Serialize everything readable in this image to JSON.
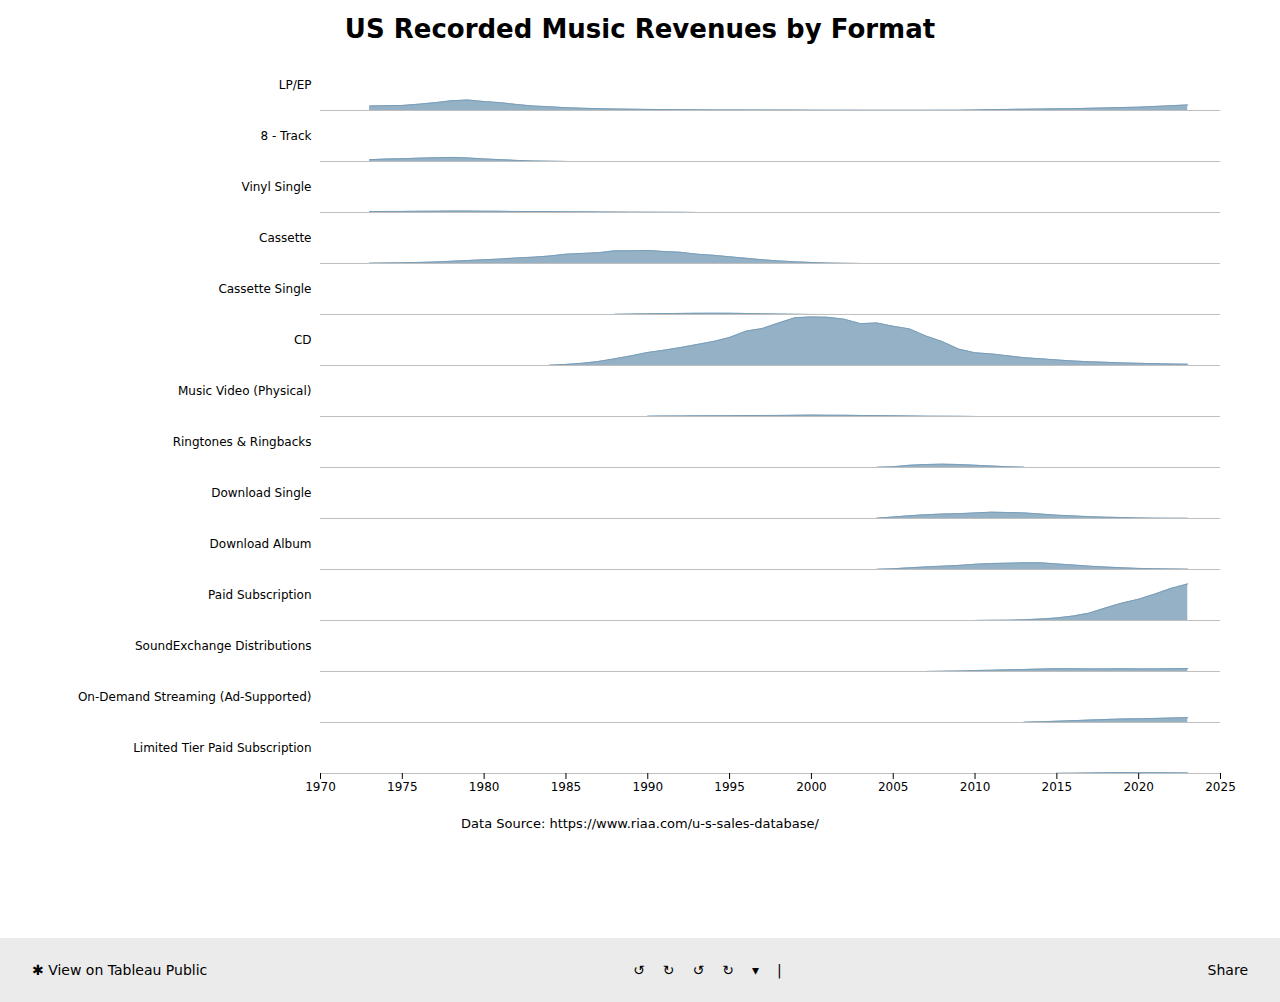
{
  "chart_data": {
    "type": "area",
    "title": "US Recorded Music Revenues by Format",
    "color": "#7a9eb8",
    "xlim": [
      1970,
      2025
    ],
    "xticks": [
      1970,
      1975,
      1980,
      1985,
      1990,
      1995,
      2000,
      2005,
      2010,
      2015,
      2020,
      2025
    ],
    "ylim": [
      0,
      13650
    ],
    "tick_labels": "x",
    "grid": false,
    "annotations": [
      "Data Source: https://www.riaa.com/u-s-sales-database/",
      "✱  View on Tableau Public",
      "↺",
      "↻",
      "↺",
      "↻",
      "▾",
      "|",
      "Share"
    ],
    "series": [
      {
        "name": "LP/EP",
        "x": [
          1973,
          1974,
          1975,
          1976,
          1977,
          1978,
          1979,
          1980,
          1981,
          1982,
          1983,
          1984,
          1985,
          1986,
          1987,
          1988,
          1989,
          1990,
          1991,
          1992,
          1993,
          1994,
          1995,
          1996,
          1997,
          1998,
          1999,
          2000,
          2001,
          2002,
          2003,
          2004,
          2005,
          2006,
          2007,
          2008,
          2009,
          2010,
          2011,
          2012,
          2013,
          2014,
          2015,
          2016,
          2017,
          2018,
          2019,
          2020,
          2021,
          2022,
          2023
        ],
        "values": [
          1200,
          1300,
          1350,
          1700,
          2100,
          2600,
          2800,
          2400,
          2100,
          1600,
          1200,
          1000,
          750,
          600,
          500,
          400,
          350,
          300,
          250,
          200,
          180,
          160,
          150,
          140,
          130,
          120,
          110,
          100,
          90,
          80,
          70,
          70,
          60,
          60,
          70,
          80,
          90,
          150,
          250,
          300,
          350,
          400,
          450,
          500,
          600,
          700,
          800,
          900,
          1100,
          1300,
          1500
        ]
      },
      {
        "name": "8 - Track",
        "x": [
          1973,
          1974,
          1975,
          1976,
          1977,
          1978,
          1979,
          1980,
          1981,
          1982,
          1983,
          1984,
          1985
        ],
        "values": [
          500,
          650,
          750,
          900,
          1000,
          1100,
          950,
          700,
          500,
          300,
          150,
          80,
          30
        ]
      },
      {
        "name": "Vinyl Single",
        "x": [
          1973,
          1974,
          1975,
          1976,
          1977,
          1978,
          1979,
          1980,
          1981,
          1982,
          1983,
          1984,
          1985,
          1986,
          1987,
          1988,
          1989,
          1990,
          1991,
          1992,
          1993
        ],
        "values": [
          250,
          280,
          300,
          320,
          350,
          380,
          370,
          350,
          320,
          280,
          260,
          240,
          200,
          180,
          150,
          120,
          100,
          80,
          60,
          40,
          20
        ]
      },
      {
        "name": "Cassette",
        "x": [
          1973,
          1974,
          1975,
          1976,
          1977,
          1978,
          1979,
          1980,
          1981,
          1982,
          1983,
          1984,
          1985,
          1986,
          1987,
          1988,
          1989,
          1990,
          1991,
          1992,
          1993,
          1994,
          1995,
          1996,
          1997,
          1998,
          1999,
          2000,
          2001,
          2002,
          2003
        ],
        "values": [
          100,
          150,
          200,
          300,
          400,
          600,
          800,
          1000,
          1200,
          1500,
          1700,
          2000,
          2500,
          2700,
          2900,
          3400,
          3400,
          3500,
          3200,
          3000,
          2500,
          2200,
          1800,
          1400,
          1000,
          700,
          450,
          280,
          120,
          50,
          20
        ]
      },
      {
        "name": "Cassette Single",
        "x": [
          1988,
          1989,
          1990,
          1991,
          1992,
          1993,
          1994,
          1995,
          1996,
          1997,
          1998,
          1999,
          2000,
          2001
        ],
        "values": [
          50,
          120,
          200,
          250,
          300,
          320,
          340,
          330,
          280,
          200,
          120,
          60,
          20,
          5
        ]
      },
      {
        "name": "CD",
        "x": [
          1984,
          1985,
          1986,
          1987,
          1988,
          1989,
          1990,
          1991,
          1992,
          1993,
          1994,
          1995,
          1996,
          1997,
          1998,
          1999,
          2000,
          2001,
          2002,
          2003,
          2004,
          2005,
          2006,
          2007,
          2008,
          2009,
          2010,
          2011,
          2012,
          2013,
          2014,
          2015,
          2016,
          2017,
          2018,
          2019,
          2020,
          2021,
          2022,
          2023
        ],
        "values": [
          100,
          300,
          600,
          1100,
          1800,
          2600,
          3500,
          4100,
          4800,
          5600,
          6400,
          7500,
          9200,
          9900,
          11400,
          12800,
          13000,
          12900,
          12400,
          11200,
          11400,
          10500,
          9800,
          7900,
          6400,
          4400,
          3400,
          3100,
          2600,
          2100,
          1800,
          1500,
          1200,
          1000,
          850,
          700,
          580,
          500,
          400,
          350
        ]
      },
      {
        "name": "Music Video (Physical)",
        "x": [
          1990,
          1991,
          1992,
          1993,
          1994,
          1995,
          1996,
          1997,
          1998,
          1999,
          2000,
          2001,
          2002,
          2003,
          2004,
          2005,
          2006,
          2007,
          2008,
          2009,
          2010
        ],
        "values": [
          100,
          130,
          150,
          180,
          200,
          230,
          260,
          280,
          300,
          330,
          370,
          350,
          320,
          280,
          250,
          200,
          150,
          100,
          70,
          40,
          20
        ]
      },
      {
        "name": "Ringtones & Ringbacks",
        "x": [
          2004,
          2005,
          2006,
          2007,
          2008,
          2009,
          2010,
          2011,
          2012,
          2013
        ],
        "values": [
          50,
          200,
          600,
          800,
          900,
          800,
          600,
          400,
          200,
          80
        ]
      },
      {
        "name": "Download Single",
        "x": [
          2004,
          2005,
          2006,
          2007,
          2008,
          2009,
          2010,
          2011,
          2012,
          2013,
          2014,
          2015,
          2016,
          2017,
          2018,
          2019,
          2020,
          2021,
          2022,
          2023
        ],
        "values": [
          100,
          400,
          750,
          1000,
          1200,
          1300,
          1500,
          1700,
          1600,
          1500,
          1200,
          900,
          700,
          500,
          350,
          250,
          150,
          100,
          70,
          50
        ]
      },
      {
        "name": "Download Album",
        "x": [
          2004,
          2005,
          2006,
          2007,
          2008,
          2009,
          2010,
          2011,
          2012,
          2013,
          2014,
          2015,
          2016,
          2017,
          2018,
          2019,
          2020,
          2021,
          2022,
          2023
        ],
        "values": [
          50,
          200,
          450,
          700,
          900,
          1100,
          1400,
          1600,
          1700,
          1800,
          1800,
          1500,
          1200,
          900,
          650,
          450,
          300,
          200,
          150,
          100
        ]
      },
      {
        "name": "Paid Subscription",
        "x": [
          2010,
          2011,
          2012,
          2013,
          2014,
          2015,
          2016,
          2017,
          2018,
          2019,
          2020,
          2021,
          2022,
          2023
        ],
        "values": [
          30,
          50,
          100,
          200,
          400,
          700,
          1200,
          2000,
          3400,
          4700,
          5700,
          7100,
          8600,
          9800
        ]
      },
      {
        "name": "SoundExchange Distributions",
        "x": [
          2007,
          2008,
          2009,
          2010,
          2011,
          2012,
          2013,
          2014,
          2015,
          2016,
          2017,
          2018,
          2019,
          2020,
          2021,
          2022,
          2023
        ],
        "values": [
          30,
          80,
          150,
          250,
          350,
          450,
          550,
          650,
          750,
          750,
          700,
          700,
          750,
          700,
          700,
          750,
          800
        ]
      },
      {
        "name": "On-Demand Streaming (Ad-Supported)",
        "x": [
          2013,
          2014,
          2015,
          2016,
          2017,
          2018,
          2019,
          2020,
          2021,
          2022,
          2023
        ],
        "values": [
          100,
          200,
          350,
          500,
          650,
          800,
          950,
          1000,
          1100,
          1200,
          1300
        ]
      },
      {
        "name": "Limited Tier Paid Subscription",
        "x": [
          2015,
          2016,
          2017,
          2018,
          2019,
          2020,
          2021,
          2022,
          2023
        ],
        "values": [
          50,
          100,
          150,
          200,
          250,
          220,
          200,
          180,
          160
        ]
      }
    ]
  }
}
